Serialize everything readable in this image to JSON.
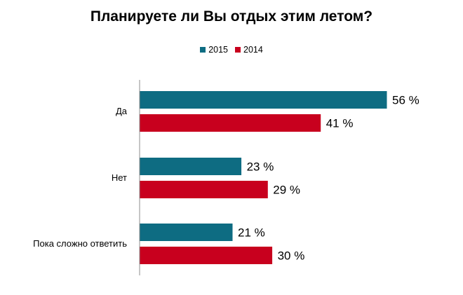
{
  "chart_data": {
    "type": "bar",
    "orientation": "horizontal",
    "title": "Планируете ли Вы отдых этим летом?",
    "categories": [
      "Да",
      "Нет",
      "Пока сложно ответить"
    ],
    "series": [
      {
        "name": "2015",
        "values": [
          56,
          23,
          21
        ],
        "labels": [
          "56 %",
          "23 %",
          "21 %"
        ],
        "color": "#0E6C82"
      },
      {
        "name": "2014",
        "values": [
          41,
          29,
          30
        ],
        "labels": [
          "41 %",
          "29 %",
          "30 %"
        ],
        "color": "#C8001E"
      }
    ],
    "xlim": [
      0,
      56
    ],
    "legend_position": "top-center",
    "grid": false
  }
}
